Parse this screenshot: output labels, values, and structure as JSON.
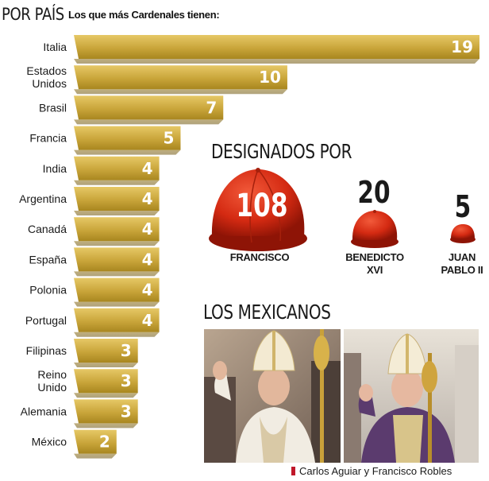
{
  "header": {
    "title": "POR PAÍS",
    "subtitle": "Los que más Cardenales tienen:"
  },
  "chart_data": {
    "type": "bar",
    "orientation": "horizontal",
    "categories": [
      "Italia",
      "Estados\nUnidos",
      "Brasil",
      "Francia",
      "India",
      "Argentina",
      "Canadá",
      "España",
      "Polonia",
      "Portugal",
      "Filipinas",
      "Reino\nUnido",
      "Alemania",
      "México"
    ],
    "values": [
      19,
      10,
      7,
      5,
      4,
      4,
      4,
      4,
      4,
      4,
      3,
      3,
      3,
      2
    ],
    "colors": {
      "bar_light": "#d6b54a",
      "bar_dark": "#9a7a1a"
    }
  },
  "designados": {
    "title": "DESIGNADOS POR",
    "items": [
      {
        "name": "FRANCISCO",
        "value": 108
      },
      {
        "name": "BENEDICTO\nXVI",
        "value": 20
      },
      {
        "name": "JUAN\nPABLO II",
        "value": 5
      }
    ],
    "colors": {
      "hat": "#d42a12",
      "hat_shadow": "#8e1406"
    }
  },
  "mexicanos": {
    "title": "LOS MEXICANOS"
  },
  "caption": "Carlos Aguiar y Francisco Robles"
}
